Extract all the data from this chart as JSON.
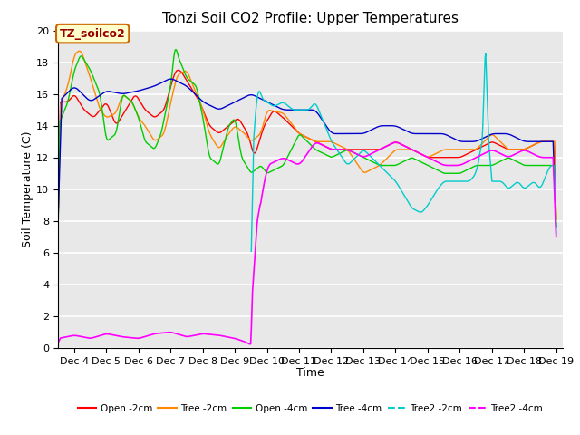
{
  "title": "Tonzi Soil CO2 Profile: Upper Temperatures",
  "xlabel": "Time",
  "ylabel": "Soil Temperature (C)",
  "ylim": [
    0,
    20
  ],
  "yticks": [
    0,
    2,
    4,
    6,
    8,
    10,
    12,
    14,
    16,
    18,
    20
  ],
  "fig_bg": "#ffffff",
  "plot_bg": "#e8e8e8",
  "grid_color": "#ffffff",
  "annotation_text": "TZ_soilco2",
  "annotation_bg": "#ffffcc",
  "annotation_border": "#cc6600",
  "annotation_text_color": "#990000",
  "series": {
    "Open_2cm": {
      "color": "#ff0000",
      "label": "Open -2cm"
    },
    "Tree_2cm": {
      "color": "#ff8800",
      "label": "Tree -2cm"
    },
    "Open_4cm": {
      "color": "#00cc00",
      "label": "Open -4cm"
    },
    "Tree_4cm": {
      "color": "#0000cc",
      "label": "Tree -4cm"
    },
    "Tree2_2cm": {
      "color": "#00cccc",
      "label": "Tree2 -2cm"
    },
    "Tree2_4cm": {
      "color": "#ff00ff",
      "label": "Tree2 -4cm"
    }
  },
  "x_tick_labels": [
    "Dec 4",
    "Dec 5",
    "Dec 6",
    "Dec 7",
    "Dec 8",
    "Dec 9",
    "Dec 10",
    "Dec 11",
    "Dec 12",
    "Dec 13",
    "Dec 14",
    "Dec 15",
    "Dec 16",
    "Dec 17",
    "Dec 18",
    "Dec 19"
  ],
  "x_tick_positions": [
    4,
    5,
    6,
    7,
    8,
    9,
    10,
    11,
    12,
    13,
    14,
    15,
    16,
    17,
    18,
    19
  ]
}
